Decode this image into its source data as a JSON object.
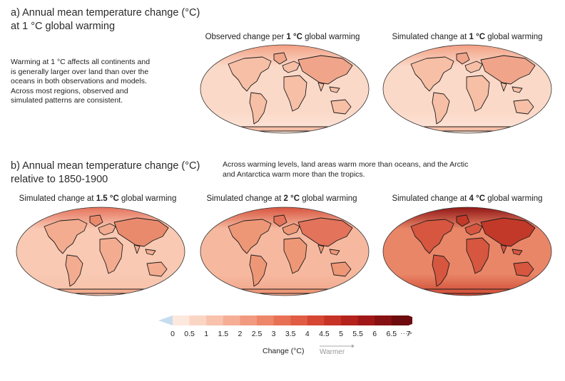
{
  "section_a": {
    "title_line1": "a) Annual mean temperature change (°C)",
    "title_line2": "at 1 °C global warming",
    "description_lines": [
      "Warming at 1 °C affects all continents and",
      "is generally larger over land than over the",
      "oceans in both observations and models.",
      "Across most regions, observed and",
      "simulated patterns are consistent."
    ],
    "maps": [
      {
        "title_prefix": "Observed change per ",
        "title_bold": "1 °C",
        "title_suffix": " global warming",
        "intensity": "low"
      },
      {
        "title_prefix": "Simulated change at ",
        "title_bold": "1 °C",
        "title_suffix": " global warming",
        "intensity": "low"
      }
    ]
  },
  "section_b": {
    "title_line1": "b) Annual mean temperature change (°C)",
    "title_line2": "relative to 1850-1900",
    "description_lines": [
      "Across warming levels, land areas warm more than oceans, and the Arctic",
      "and Antarctica warm more than the tropics."
    ],
    "maps": [
      {
        "title_prefix": "Simulated change at ",
        "title_bold": "1.5 °C",
        "title_suffix": " global warming",
        "intensity": "medium"
      },
      {
        "title_prefix": "Simulated change at ",
        "title_bold": "2 °C",
        "title_suffix": " global warming",
        "intensity": "medium-high"
      },
      {
        "title_prefix": "Simulated change at ",
        "title_bold": "4 °C",
        "title_suffix": " global warming",
        "intensity": "high"
      }
    ]
  },
  "colorbar": {
    "ticks": [
      "0",
      "0.5",
      "1",
      "1.5",
      "2",
      "2.5",
      "3",
      "3.5",
      "4",
      "4.5",
      "5",
      "5.5",
      "6",
      "6.5",
      "7"
    ],
    "colors": [
      "#fde8dd",
      "#fbd5c4",
      "#f8c2ac",
      "#f5ae95",
      "#f29a7f",
      "#ee8669",
      "#e87155",
      "#e05c43",
      "#d54633",
      "#c73326",
      "#b5231d",
      "#9f1717",
      "#861012",
      "#6d0b0e"
    ],
    "under_color": "#c8dcef",
    "label": "Change (°C)",
    "warmer_label": "Warmer",
    "overflow_symbol": "···>"
  }
}
